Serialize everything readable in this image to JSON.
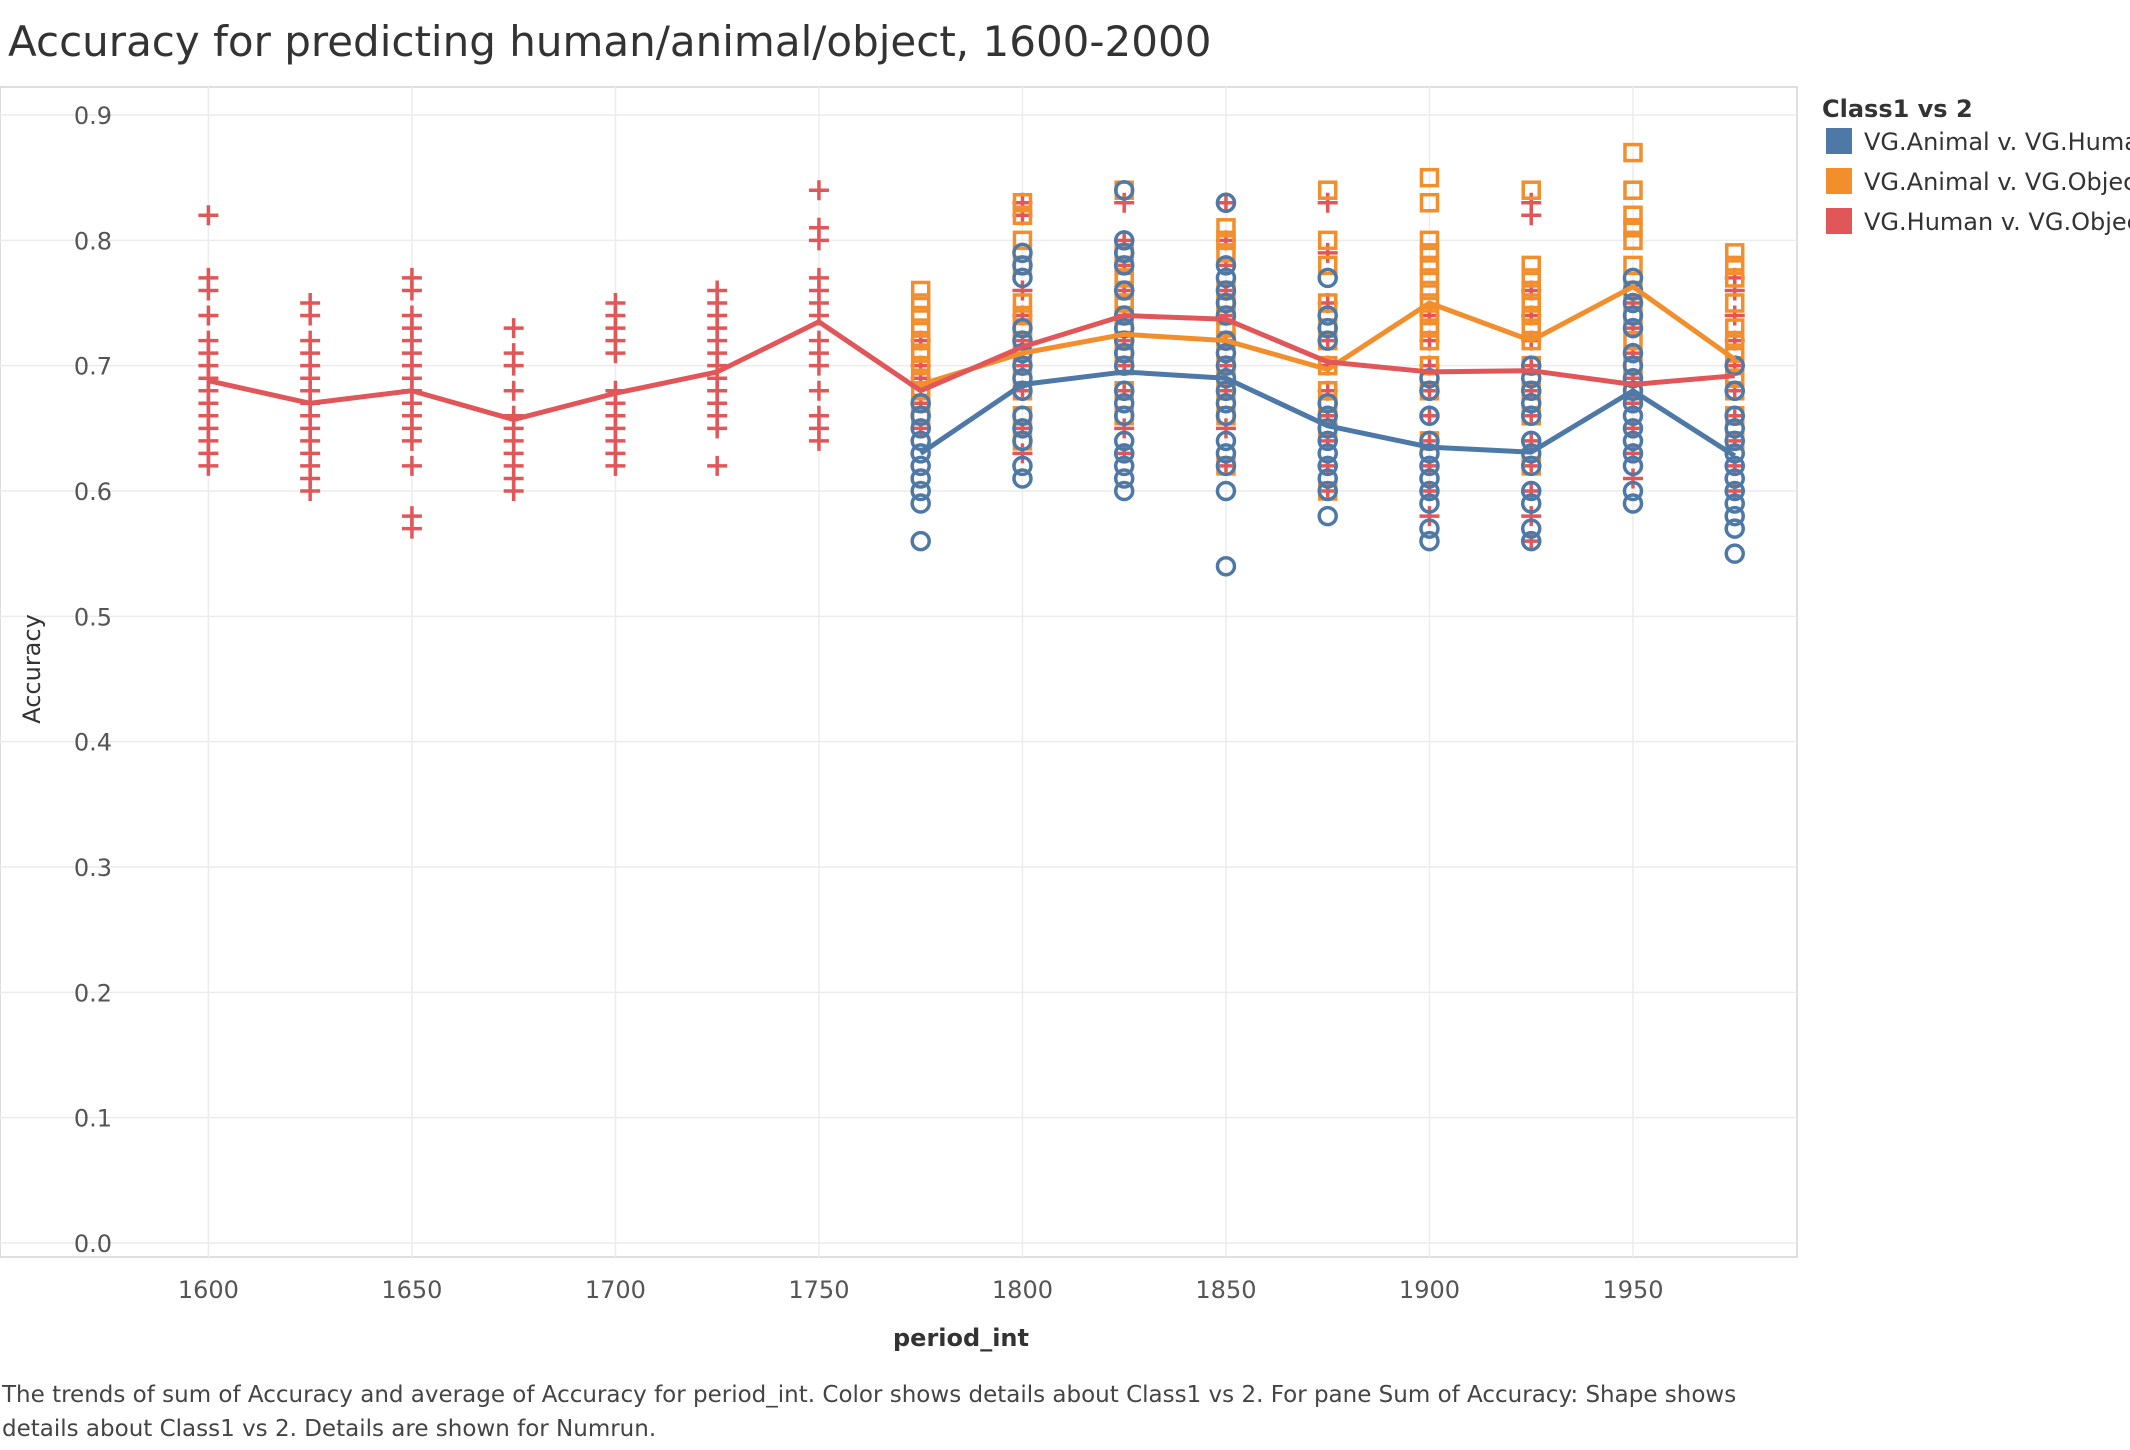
{
  "chart_data": {
    "type": "scatter",
    "title": "Accuracy for predicting human/animal/object, 1600-2000",
    "xlabel": "period_int",
    "ylabel": "Accuracy",
    "xlim": [
      1580,
      1993
    ],
    "ylim": [
      0.0,
      0.9
    ],
    "x_ticks": [
      1600,
      1650,
      1700,
      1750,
      1800,
      1850,
      1900,
      1950
    ],
    "y_ticks": [
      0.0,
      0.1,
      0.2,
      0.3,
      0.4,
      0.5,
      0.6,
      0.7,
      0.8,
      0.9
    ],
    "grid": true,
    "legend": {
      "title": "Class1 vs 2",
      "position": "top-right"
    },
    "series": [
      {
        "name": "VG.Animal v. VG.Human",
        "color": "#4e79a7",
        "shape": "circle",
        "x": [
          1775,
          1800,
          1825,
          1850,
          1875,
          1900,
          1925,
          1950,
          1975
        ],
        "mean": [
          0.63,
          0.685,
          0.695,
          0.69,
          0.652,
          0.635,
          0.631,
          0.68,
          0.628
        ],
        "points": [
          [
            0.56,
            0.59,
            0.6,
            0.61,
            0.62,
            0.63,
            0.64,
            0.65,
            0.66,
            0.67
          ],
          [
            0.61,
            0.62,
            0.64,
            0.65,
            0.66,
            0.68,
            0.69,
            0.7,
            0.71,
            0.72,
            0.73,
            0.77,
            0.78,
            0.79
          ],
          [
            0.6,
            0.61,
            0.62,
            0.63,
            0.64,
            0.66,
            0.67,
            0.68,
            0.7,
            0.71,
            0.72,
            0.73,
            0.74,
            0.76,
            0.78,
            0.79,
            0.8,
            0.84
          ],
          [
            0.54,
            0.6,
            0.62,
            0.63,
            0.64,
            0.66,
            0.67,
            0.68,
            0.69,
            0.7,
            0.71,
            0.72,
            0.74,
            0.75,
            0.76,
            0.77,
            0.78,
            0.83
          ],
          [
            0.58,
            0.6,
            0.61,
            0.62,
            0.63,
            0.64,
            0.65,
            0.66,
            0.67,
            0.72,
            0.73,
            0.74,
            0.77
          ],
          [
            0.56,
            0.57,
            0.59,
            0.6,
            0.61,
            0.62,
            0.63,
            0.64,
            0.66,
            0.68,
            0.69
          ],
          [
            0.56,
            0.57,
            0.59,
            0.6,
            0.62,
            0.63,
            0.64,
            0.66,
            0.67,
            0.68,
            0.69,
            0.7
          ],
          [
            0.59,
            0.6,
            0.62,
            0.63,
            0.64,
            0.65,
            0.66,
            0.67,
            0.68,
            0.69,
            0.7,
            0.71,
            0.73,
            0.74,
            0.75,
            0.76,
            0.77
          ],
          [
            0.55,
            0.57,
            0.58,
            0.59,
            0.6,
            0.61,
            0.62,
            0.63,
            0.64,
            0.65,
            0.66,
            0.68,
            0.7
          ]
        ]
      },
      {
        "name": "VG.Animal v. VG.Object",
        "color": "#f28e2b",
        "shape": "square",
        "x": [
          1775,
          1800,
          1825,
          1850,
          1875,
          1900,
          1925,
          1950,
          1975
        ],
        "mean": [
          0.685,
          0.71,
          0.725,
          0.72,
          0.697,
          0.75,
          0.72,
          0.763,
          0.705
        ],
        "points": [
          [
            0.66,
            0.67,
            0.68,
            0.69,
            0.7,
            0.71,
            0.72,
            0.73,
            0.74,
            0.75,
            0.76
          ],
          [
            0.64,
            0.66,
            0.68,
            0.7,
            0.72,
            0.73,
            0.74,
            0.75,
            0.78,
            0.8,
            0.82,
            0.83
          ],
          [
            0.66,
            0.68,
            0.7,
            0.71,
            0.72,
            0.73,
            0.74,
            0.75,
            0.76,
            0.77,
            0.78,
            0.79,
            0.84
          ],
          [
            0.62,
            0.66,
            0.68,
            0.7,
            0.72,
            0.73,
            0.74,
            0.75,
            0.76,
            0.79,
            0.8,
            0.81
          ],
          [
            0.6,
            0.65,
            0.67,
            0.68,
            0.7,
            0.72,
            0.73,
            0.75,
            0.78,
            0.8,
            0.84
          ],
          [
            0.64,
            0.68,
            0.7,
            0.72,
            0.73,
            0.74,
            0.75,
            0.76,
            0.77,
            0.78,
            0.79,
            0.8,
            0.83,
            0.85
          ],
          [
            0.62,
            0.66,
            0.68,
            0.7,
            0.72,
            0.73,
            0.74,
            0.75,
            0.76,
            0.77,
            0.78,
            0.84
          ],
          [
            0.68,
            0.7,
            0.72,
            0.74,
            0.76,
            0.78,
            0.8,
            0.81,
            0.82,
            0.84,
            0.87
          ],
          [
            0.64,
            0.66,
            0.68,
            0.69,
            0.7,
            0.71,
            0.72,
            0.73,
            0.75,
            0.77,
            0.78,
            0.79
          ]
        ]
      },
      {
        "name": "VG.Human v. VG.Object",
        "color": "#e15759",
        "shape": "plus",
        "x": [
          1600,
          1625,
          1650,
          1675,
          1700,
          1725,
          1750,
          1775,
          1800,
          1825,
          1850,
          1875,
          1900,
          1925,
          1950,
          1975
        ],
        "mean": [
          0.688,
          0.67,
          0.68,
          0.657,
          0.678,
          0.695,
          0.735,
          0.68,
          0.715,
          0.74,
          0.737,
          0.703,
          0.695,
          0.696,
          0.685,
          0.692
        ],
        "points": [
          [
            0.62,
            0.63,
            0.64,
            0.65,
            0.66,
            0.67,
            0.68,
            0.69,
            0.7,
            0.71,
            0.72,
            0.74,
            0.76,
            0.77,
            0.82
          ],
          [
            0.6,
            0.61,
            0.62,
            0.63,
            0.64,
            0.65,
            0.66,
            0.67,
            0.68,
            0.69,
            0.7,
            0.71,
            0.72,
            0.74,
            0.75
          ],
          [
            0.57,
            0.58,
            0.62,
            0.64,
            0.65,
            0.66,
            0.67,
            0.68,
            0.69,
            0.7,
            0.71,
            0.72,
            0.73,
            0.74,
            0.76,
            0.77
          ],
          [
            0.6,
            0.61,
            0.62,
            0.63,
            0.64,
            0.65,
            0.66,
            0.68,
            0.7,
            0.71,
            0.73
          ],
          [
            0.62,
            0.63,
            0.64,
            0.65,
            0.66,
            0.67,
            0.68,
            0.71,
            0.72,
            0.73,
            0.74,
            0.75
          ],
          [
            0.62,
            0.65,
            0.66,
            0.67,
            0.68,
            0.69,
            0.7,
            0.71,
            0.72,
            0.73,
            0.74,
            0.75,
            0.76
          ],
          [
            0.64,
            0.65,
            0.66,
            0.68,
            0.7,
            0.71,
            0.72,
            0.74,
            0.75,
            0.76,
            0.77,
            0.8,
            0.81,
            0.84
          ],
          [
            0.65,
            0.67,
            0.69,
            0.7,
            0.72
          ],
          [
            0.63,
            0.65,
            0.68,
            0.7,
            0.72,
            0.74,
            0.76,
            0.82,
            0.83
          ],
          [
            0.63,
            0.65,
            0.68,
            0.7,
            0.72,
            0.74,
            0.76,
            0.78,
            0.8,
            0.83
          ],
          [
            0.62,
            0.65,
            0.68,
            0.7,
            0.72,
            0.74,
            0.76,
            0.78,
            0.8,
            0.83
          ],
          [
            0.6,
            0.62,
            0.64,
            0.66,
            0.68,
            0.7,
            0.72,
            0.75,
            0.79,
            0.83
          ],
          [
            0.58,
            0.6,
            0.62,
            0.64,
            0.66,
            0.68,
            0.7,
            0.72,
            0.74
          ],
          [
            0.56,
            0.58,
            0.6,
            0.62,
            0.64,
            0.66,
            0.68,
            0.7,
            0.72,
            0.74,
            0.76,
            0.82,
            0.83
          ],
          [
            0.61,
            0.63,
            0.65,
            0.67,
            0.69,
            0.71,
            0.73,
            0.75
          ],
          [
            0.6,
            0.62,
            0.64,
            0.66,
            0.68,
            0.7,
            0.72,
            0.74,
            0.76,
            0.77
          ]
        ]
      }
    ]
  },
  "caption": "The trends of sum of Accuracy and average of Accuracy for period_int.  Color shows details about Class1 vs 2.  For pane Sum of Accuracy:  Shape shows details about Class1 vs 2.  Details are shown for Numrun."
}
